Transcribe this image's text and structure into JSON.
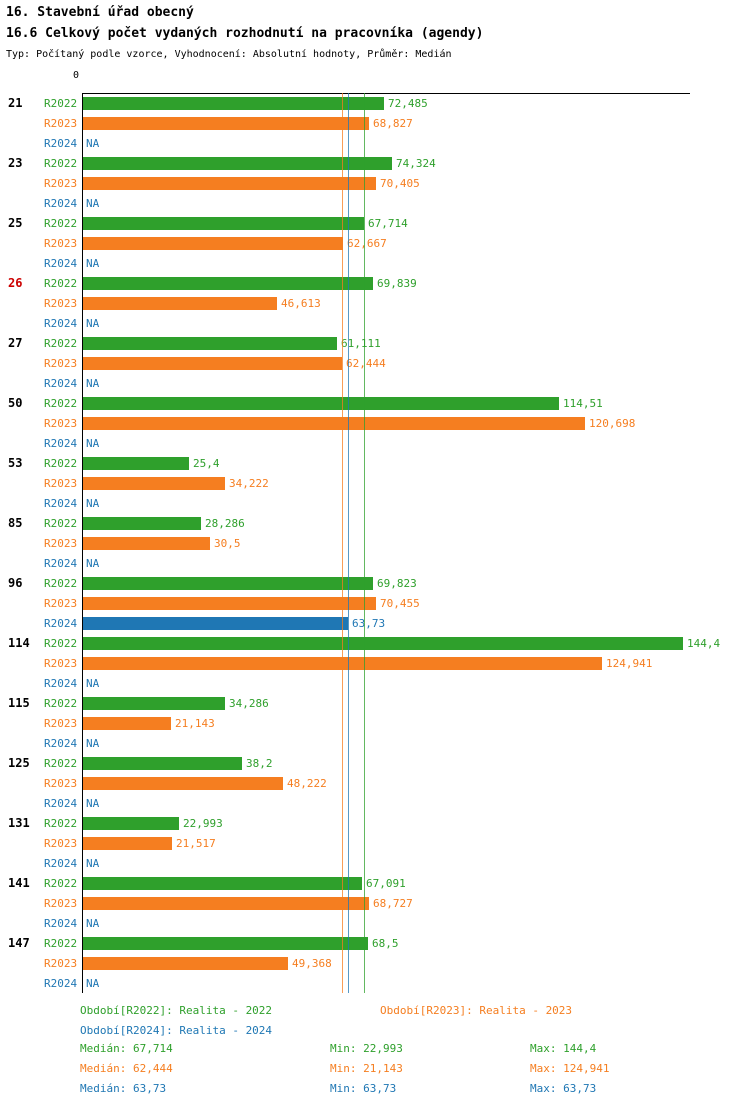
{
  "colors": {
    "R2022": "#2fa02c",
    "R2023": "#f57e20",
    "R2024": "#1f77b4",
    "id_label": "#000000",
    "highlight_id": "#cc0000",
    "axis": "#000000"
  },
  "chart_data": {
    "type": "bar",
    "orientation": "horizontal",
    "title": "16. Stavební úřad obecný",
    "subtitle": "16.6 Celkový počet vydaných rozhodnutí na pracovníka (agendy)",
    "meta": "Typ: Počítaný podle vzorce, Vyhodnocení: Absolutní hodnoty, Průměr: Medián",
    "x_axis": {
      "origin_label": "0",
      "min": 0,
      "max": 146
    },
    "series": [
      "R2022",
      "R2023",
      "R2024"
    ],
    "groups": [
      {
        "id": "21",
        "highlight": false,
        "bars": [
          {
            "series": "R2022",
            "value": 72.485,
            "label": "72,485"
          },
          {
            "series": "R2023",
            "value": 68.827,
            "label": "68,827"
          },
          {
            "series": "R2024",
            "value": null,
            "label": "NA"
          }
        ]
      },
      {
        "id": "23",
        "highlight": false,
        "bars": [
          {
            "series": "R2022",
            "value": 74.324,
            "label": "74,324"
          },
          {
            "series": "R2023",
            "value": 70.405,
            "label": "70,405"
          },
          {
            "series": "R2024",
            "value": null,
            "label": "NA"
          }
        ]
      },
      {
        "id": "25",
        "highlight": false,
        "bars": [
          {
            "series": "R2022",
            "value": 67.714,
            "label": "67,714"
          },
          {
            "series": "R2023",
            "value": 62.667,
            "label": "62,667"
          },
          {
            "series": "R2024",
            "value": null,
            "label": "NA"
          }
        ]
      },
      {
        "id": "26",
        "highlight": true,
        "bars": [
          {
            "series": "R2022",
            "value": 69.839,
            "label": "69,839"
          },
          {
            "series": "R2023",
            "value": 46.613,
            "label": "46,613"
          },
          {
            "series": "R2024",
            "value": null,
            "label": "NA"
          }
        ]
      },
      {
        "id": "27",
        "highlight": false,
        "bars": [
          {
            "series": "R2022",
            "value": 61.111,
            "label": "61,111"
          },
          {
            "series": "R2023",
            "value": 62.444,
            "label": "62,444"
          },
          {
            "series": "R2024",
            "value": null,
            "label": "NA"
          }
        ]
      },
      {
        "id": "50",
        "highlight": false,
        "bars": [
          {
            "series": "R2022",
            "value": 114.51,
            "label": "114,51"
          },
          {
            "series": "R2023",
            "value": 120.698,
            "label": "120,698"
          },
          {
            "series": "R2024",
            "value": null,
            "label": "NA"
          }
        ]
      },
      {
        "id": "53",
        "highlight": false,
        "bars": [
          {
            "series": "R2022",
            "value": 25.4,
            "label": "25,4"
          },
          {
            "series": "R2023",
            "value": 34.222,
            "label": "34,222"
          },
          {
            "series": "R2024",
            "value": null,
            "label": "NA"
          }
        ]
      },
      {
        "id": "85",
        "highlight": false,
        "bars": [
          {
            "series": "R2022",
            "value": 28.286,
            "label": "28,286"
          },
          {
            "series": "R2023",
            "value": 30.5,
            "label": "30,5"
          },
          {
            "series": "R2024",
            "value": null,
            "label": "NA"
          }
        ]
      },
      {
        "id": "96",
        "highlight": false,
        "bars": [
          {
            "series": "R2022",
            "value": 69.823,
            "label": "69,823"
          },
          {
            "series": "R2023",
            "value": 70.455,
            "label": "70,455"
          },
          {
            "series": "R2024",
            "value": 63.73,
            "label": "63,73"
          }
        ]
      },
      {
        "id": "114",
        "highlight": false,
        "bars": [
          {
            "series": "R2022",
            "value": 144.4,
            "label": "144,4"
          },
          {
            "series": "R2023",
            "value": 124.941,
            "label": "124,941"
          },
          {
            "series": "R2024",
            "value": null,
            "label": "NA"
          }
        ]
      },
      {
        "id": "115",
        "highlight": false,
        "bars": [
          {
            "series": "R2022",
            "value": 34.286,
            "label": "34,286"
          },
          {
            "series": "R2023",
            "value": 21.143,
            "label": "21,143"
          },
          {
            "series": "R2024",
            "value": null,
            "label": "NA"
          }
        ]
      },
      {
        "id": "125",
        "highlight": false,
        "bars": [
          {
            "series": "R2022",
            "value": 38.2,
            "label": "38,2"
          },
          {
            "series": "R2023",
            "value": 48.222,
            "label": "48,222"
          },
          {
            "series": "R2024",
            "value": null,
            "label": "NA"
          }
        ]
      },
      {
        "id": "131",
        "highlight": false,
        "bars": [
          {
            "series": "R2022",
            "value": 22.993,
            "label": "22,993"
          },
          {
            "series": "R2023",
            "value": 21.517,
            "label": "21,517"
          },
          {
            "series": "R2024",
            "value": null,
            "label": "NA"
          }
        ]
      },
      {
        "id": "141",
        "highlight": false,
        "bars": [
          {
            "series": "R2022",
            "value": 67.091,
            "label": "67,091"
          },
          {
            "series": "R2023",
            "value": 68.727,
            "label": "68,727"
          },
          {
            "series": "R2024",
            "value": null,
            "label": "NA"
          }
        ]
      },
      {
        "id": "147",
        "highlight": false,
        "bars": [
          {
            "series": "R2022",
            "value": 68.5,
            "label": "68,5"
          },
          {
            "series": "R2023",
            "value": 49.368,
            "label": "49,368"
          },
          {
            "series": "R2024",
            "value": null,
            "label": "NA"
          }
        ]
      }
    ],
    "median_lines": [
      {
        "series": "R2022",
        "value": 67.714
      },
      {
        "series": "R2023",
        "value": 62.444
      },
      {
        "series": "R2024",
        "value": 63.73
      }
    ]
  },
  "legend": {
    "items": [
      {
        "key": "R2022",
        "label": "Období[R2022]: Realita - 2022"
      },
      {
        "key": "R2023",
        "label": "Období[R2023]: Realita - 2023"
      },
      {
        "key": "R2024",
        "label": "Období[R2024]: Realita - 2024"
      }
    ]
  },
  "stats": {
    "rows": [
      {
        "key": "R2022",
        "median": "Medián: 67,714",
        "min": "Min: 22,993",
        "max": "Max: 144,4"
      },
      {
        "key": "R2023",
        "median": "Medián: 62,444",
        "min": "Min: 21,143",
        "max": "Max: 124,941"
      },
      {
        "key": "R2024",
        "median": "Medián: 63,73",
        "min": "Min: 63,73",
        "max": "Max: 63,73"
      }
    ]
  }
}
